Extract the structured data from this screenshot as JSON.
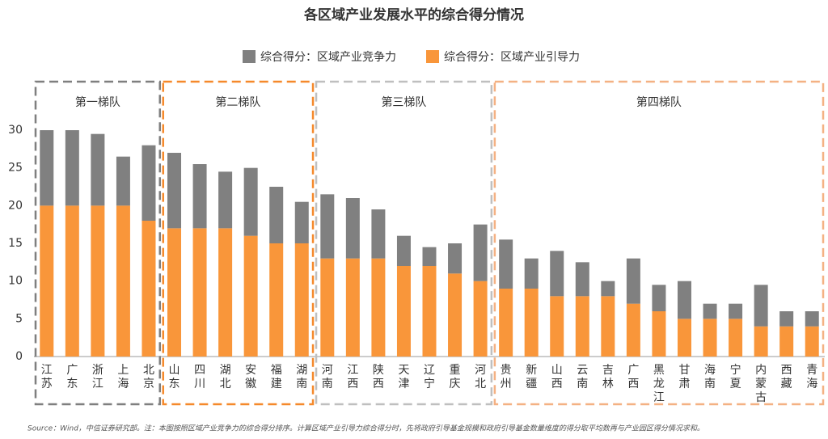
{
  "chart_data": {
    "type": "stacked_bar",
    "title": "各区域产业发展水平的综合得分情况",
    "source": "Source：Wind，中信证券研究部。注：本图按照区域产业竞争力的综合得分排序。计算区域产业引导力综合得分时，先将政府引导基金规模和政府引导基金数量维度的得分取平均数再与产业园区得分情况求和。",
    "groups": [
      "第一梯队",
      "第二梯队",
      "第三梯队",
      "第四梯队"
    ],
    "categories": [
      "江苏",
      "广东",
      "浙江",
      "上海",
      "北京",
      "山东",
      "四川",
      "湖北",
      "安徽",
      "福建",
      "湖南",
      "河南",
      "江西",
      "陕西",
      "天津",
      "辽宁",
      "重庆",
      "河北",
      "贵州",
      "新疆",
      "山西",
      "云南",
      "吉林",
      "广西",
      "黑龙江",
      "甘肃",
      "海南",
      "宁夏",
      "内蒙古",
      "西藏",
      "青海"
    ],
    "series": [
      {
        "name": "综合得分：区域产业竞争力",
        "color": "#808080",
        "values": [
          10,
          10,
          9.5,
          6.5,
          10,
          10,
          8.5,
          7.5,
          9,
          7.5,
          5.5,
          8.5,
          8,
          6.5,
          4,
          2.5,
          4,
          7.5,
          6.5,
          4,
          6,
          4.5,
          2,
          6,
          3.5,
          5,
          2,
          2,
          5.5,
          2,
          2
        ]
      },
      {
        "name": "综合得分：区域产业引导力",
        "color": "#f9963a",
        "values": [
          20,
          20,
          20,
          20,
          18,
          17,
          17,
          17,
          16,
          15,
          15,
          13,
          13,
          13,
          12,
          12,
          11,
          10,
          9,
          9,
          8,
          8,
          8,
          7,
          6,
          5,
          5,
          5,
          4,
          4,
          4
        ]
      }
    ],
    "ylim": [
      0,
      35
    ],
    "yticks": [
      0,
      5,
      10,
      15,
      20,
      25,
      30
    ]
  }
}
